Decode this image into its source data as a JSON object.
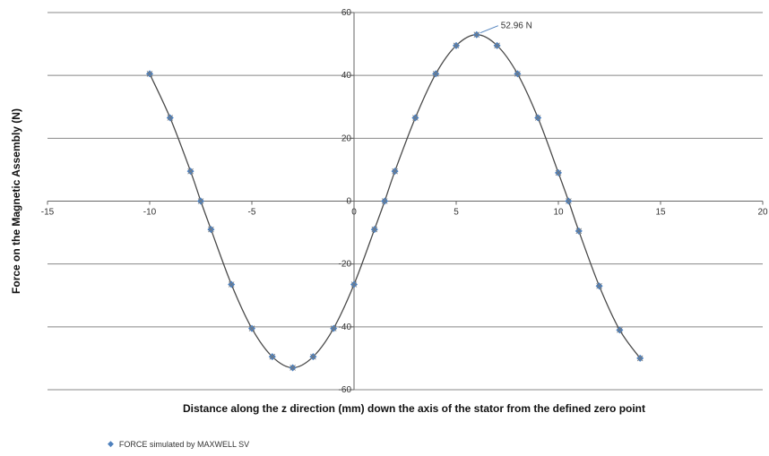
{
  "chart_data": {
    "type": "scatter",
    "title": "",
    "xlabel": "Distance along the z direction (mm) down the axis of the stator from the defined zero point",
    "ylabel": "Force on the Magnetic Assembly (N)",
    "xlim": [
      -15,
      20
    ],
    "ylim": [
      -60,
      60
    ],
    "x_ticks": [
      "-15",
      "-10",
      "-5",
      "0",
      "5",
      "10",
      "15",
      "20"
    ],
    "y_ticks": [
      "-60",
      "-40",
      "-20",
      "0",
      "20",
      "40",
      "60"
    ],
    "grid": "horizontal",
    "legend_position": "bottom-left",
    "annotation": {
      "text": "52.96  N",
      "x": 6,
      "y": 52.96
    },
    "series": [
      {
        "name": "FORCE simulated by MAXWELL SV",
        "color": "#4f81bd",
        "marker": "diamond",
        "x": [
          -10,
          -9,
          -8,
          -7.5,
          -7,
          -6,
          -5,
          -4,
          -3,
          -2,
          -1,
          0,
          1,
          1.5,
          2,
          3,
          4,
          5,
          6,
          7,
          8,
          9,
          10,
          10.5,
          11,
          12,
          13,
          14
        ],
        "y": [
          40.5,
          26.5,
          9.5,
          0,
          -9,
          -26.5,
          -40.5,
          -49.5,
          -53,
          -49.5,
          -40.5,
          -26.5,
          -9,
          0,
          9.5,
          26.5,
          40.5,
          49.5,
          52.96,
          49.5,
          40.5,
          26.5,
          9,
          0,
          -9.5,
          -27,
          -41,
          -50
        ]
      }
    ]
  }
}
